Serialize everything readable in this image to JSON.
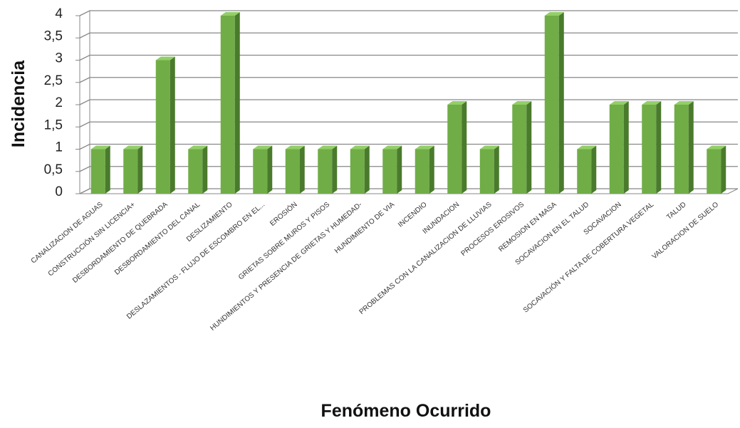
{
  "chart_data": {
    "type": "bar3d",
    "xlabel": "Fenómeno Ocurrido",
    "ylabel": "Incidencia",
    "categories": [
      "CANALIZACION DE AGUAS",
      "CONSTRUCCIÓN SIN LICENCIA+",
      "DESBORDAMIENTO DE QUEBRADA",
      "DESBORDAMIENTO DEL CANAL",
      "DESLIZAMIENTO",
      "DESLAZAMIENTOS - FLUJO DE ESCOMBRO EN EL...",
      "EROSIÓN",
      "GRIETAS SOBRE MUROS Y PISOS",
      "HUNDIMIENTOS Y  PRESENCIA DE GRIETAS Y HUMEDAD-",
      "HUNDIMIENTO DE VIA",
      "INCENDIO",
      "INUNDACION",
      "PROBLEMAS CON LA CANALIZACION DE LLUVIAS",
      "PROCESOS EROSIVOS",
      "REMOSION EN MASA",
      "SOCAVACION EN EL TALUD",
      "SOCAVACION",
      "SOCAVACIÓN Y FALTA DE COBERTURA VEGETAL",
      "TALUD",
      "VALORACION DE SUELO"
    ],
    "values": [
      1,
      1,
      3,
      1,
      4,
      1,
      1,
      1,
      1,
      1,
      1,
      2,
      1,
      2,
      4,
      1,
      2,
      2,
      2,
      1
    ],
    "color": "#70ad47",
    "ylim": [
      0,
      4
    ],
    "yticks": [
      0,
      {
        "value": 0.5,
        "label": "0,5"
      },
      1,
      {
        "value": 1.5,
        "label": "1,5"
      },
      2,
      {
        "value": 2.5,
        "label": "2,5"
      },
      3,
      {
        "value": 3.5,
        "label": "3,5"
      },
      4
    ],
    "grid": true
  }
}
